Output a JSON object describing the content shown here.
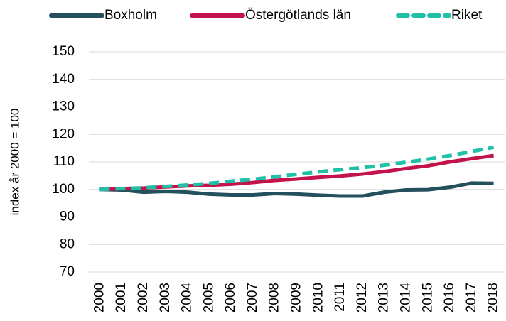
{
  "chart_data": {
    "type": "line",
    "y_label": "index år 2000 = 100",
    "categories": [
      "2000",
      "2001",
      "2002",
      "2003",
      "2004",
      "2005",
      "2006",
      "2007",
      "2008",
      "2009",
      "2010",
      "2011",
      "2012",
      "2013",
      "2014",
      "2015",
      "2016",
      "2017",
      "2018"
    ],
    "series": [
      {
        "name": "Boxholm",
        "color": "#244f5c",
        "dash": false,
        "values": [
          100,
          99.8,
          99,
          99.3,
          99,
          98.3,
          98,
          98,
          98.5,
          98.3,
          97.9,
          97.6,
          97.6,
          99,
          99.8,
          99.9,
          100.8,
          102.3,
          102.2
        ]
      },
      {
        "name": "Östergötlands län",
        "color": "#c4124a",
        "dash": false,
        "values": [
          100,
          100.3,
          100.5,
          100.9,
          101.3,
          101.5,
          101.9,
          102.5,
          103.3,
          103.8,
          104.4,
          104.9,
          105.6,
          106.5,
          107.6,
          108.6,
          110,
          111.2,
          112.3
        ]
      },
      {
        "name": "Riket",
        "color": "#1fc0a6",
        "dash": true,
        "values": [
          100,
          100.3,
          100.6,
          101.1,
          101.6,
          102.2,
          103,
          103.7,
          104.6,
          105.5,
          106.4,
          107.2,
          107.9,
          108.8,
          109.9,
          111,
          112.3,
          113.8,
          115.3
        ]
      }
    ],
    "ylim": [
      70,
      150
    ],
    "yticks": [
      70,
      80,
      90,
      100,
      110,
      120,
      130,
      140,
      150
    ],
    "grid": true,
    "legend": "top"
  }
}
